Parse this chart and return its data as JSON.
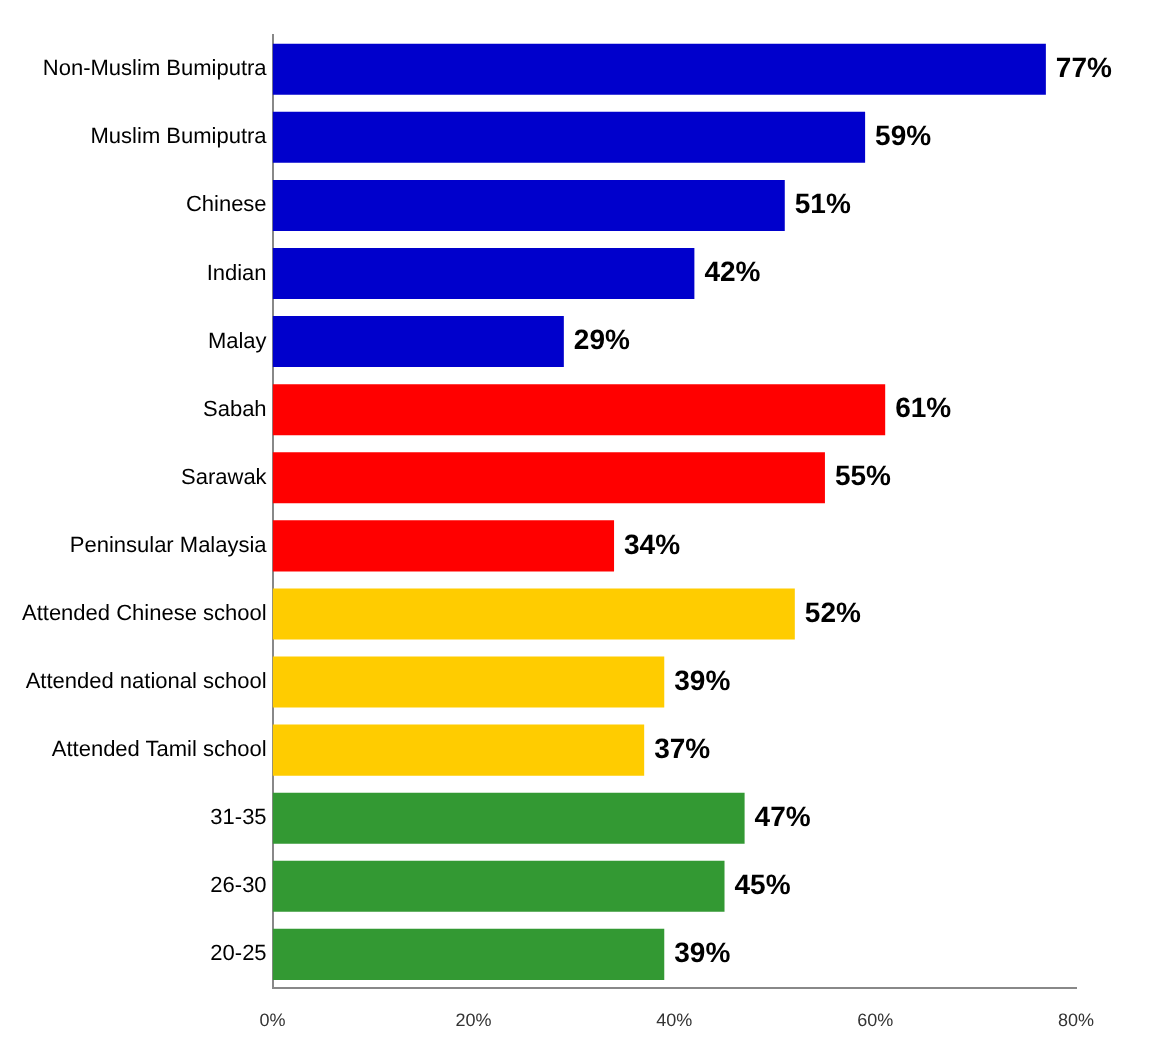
{
  "chart_data": {
    "type": "bar",
    "orientation": "horizontal",
    "categories": [
      "Non-Muslim Bumiputra",
      "Muslim Bumiputra",
      "Chinese",
      "Indian",
      "Malay",
      "Sabah",
      "Sarawak",
      "Peninsular Malaysia",
      "Attended Chinese school",
      "Attended national school",
      "Attended Tamil school",
      "31-35",
      "26-30",
      "20-25"
    ],
    "values": [
      77,
      59,
      51,
      42,
      29,
      61,
      55,
      34,
      52,
      39,
      37,
      47,
      45,
      39
    ],
    "value_labels": [
      "77%",
      "59%",
      "51%",
      "42%",
      "29%",
      "61%",
      "55%",
      "34%",
      "52%",
      "39%",
      "37%",
      "47%",
      "45%",
      "39%"
    ],
    "colors": [
      "#0000cc",
      "#0000cc",
      "#0000cc",
      "#0000cc",
      "#0000cc",
      "#ff0000",
      "#ff0000",
      "#ff0000",
      "#ffcc00",
      "#ffcc00",
      "#ffcc00",
      "#339933",
      "#339933",
      "#339933"
    ],
    "xlim": [
      0,
      80
    ],
    "xticks": [
      {
        "value": 0,
        "label": "0%"
      },
      {
        "value": 20,
        "label": "20%"
      },
      {
        "value": 40,
        "label": "40%"
      },
      {
        "value": 60,
        "label": "60%"
      },
      {
        "value": 80,
        "label": "80%"
      }
    ],
    "grid": false,
    "legend": false
  }
}
